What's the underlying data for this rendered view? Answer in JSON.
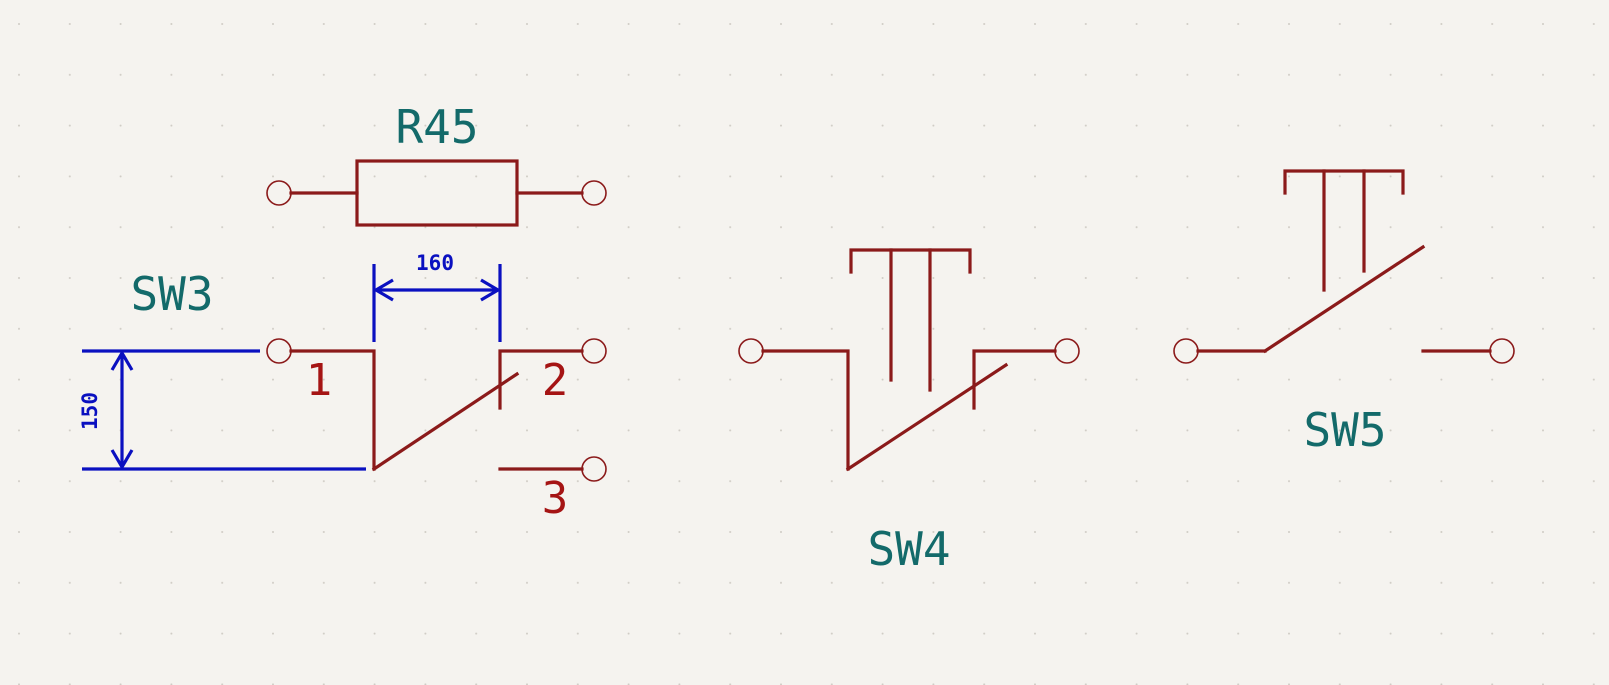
{
  "canvas": {
    "background": "#f5f3ef",
    "grid_color": "#cfcbc4"
  },
  "colors": {
    "symbol": "#8b1a1a",
    "pin_number": "#a51414",
    "reference": "#136a6a",
    "dimension": "#0a10c0"
  },
  "components": {
    "r45": {
      "reference": "R45"
    },
    "sw3": {
      "reference": "SW3",
      "pins": {
        "p1": "1",
        "p2": "2",
        "p3": "3"
      }
    },
    "sw4": {
      "reference": "SW4"
    },
    "sw5": {
      "reference": "SW5"
    }
  },
  "dimensions": {
    "horizontal": {
      "label": "160"
    },
    "vertical": {
      "label": "150"
    }
  }
}
